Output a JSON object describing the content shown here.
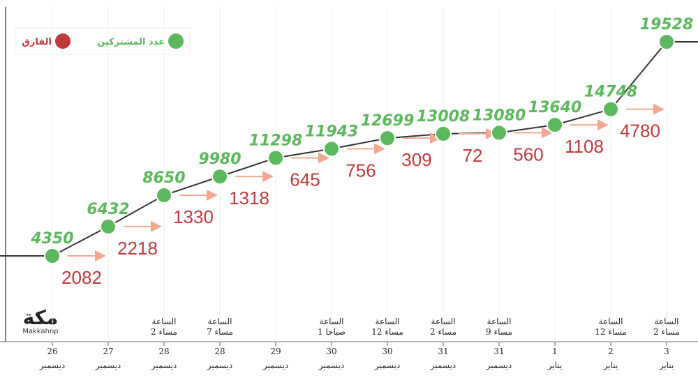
{
  "chart_data": {
    "type": "line",
    "categories": [
      {
        "day": "26",
        "month": "ديسمبر"
      },
      {
        "day": "27",
        "month": "ديسمبر"
      },
      {
        "day": "28",
        "month": "ديسمبر",
        "time": [
          "الساعة",
          "2 مساء"
        ]
      },
      {
        "day": "28",
        "month": "ديسمبر",
        "time": [
          "الساعة",
          "7 مساء"
        ]
      },
      {
        "day": "29",
        "month": "ديسمبر"
      },
      {
        "day": "30",
        "month": "ديسمبر",
        "time": [
          "الساعة",
          "1 صباحا"
        ]
      },
      {
        "day": "30",
        "month": "ديسمبر",
        "time": [
          "الساعة",
          "12 مساء"
        ]
      },
      {
        "day": "31",
        "month": "ديسمبر",
        "time": [
          "الساعة",
          "2 مساء"
        ]
      },
      {
        "day": "31",
        "month": "ديسمبر",
        "time": [
          "الساعة",
          "9 مساء"
        ]
      },
      {
        "day": "1",
        "month": "يناير"
      },
      {
        "day": "2",
        "month": "يناير",
        "time": [
          "الساعة",
          "12 مساء"
        ]
      },
      {
        "day": "3",
        "month": "يناير",
        "time": [
          "الساعة",
          "2 مساء"
        ]
      }
    ],
    "series": [
      {
        "name": "عدد المشتركين",
        "color": "#5cb85c",
        "values": [
          4350,
          6432,
          8650,
          9980,
          11298,
          11943,
          12699,
          13008,
          13080,
          13640,
          14748,
          19528
        ]
      },
      {
        "name": "الفارق",
        "color": "#c0393b",
        "values": [
          null,
          2082,
          2218,
          1330,
          1318,
          645,
          756,
          309,
          72,
          560,
          1108,
          4780
        ]
      }
    ],
    "logo": {
      "name": "مكة",
      "handle": "Makkahnp"
    }
  }
}
